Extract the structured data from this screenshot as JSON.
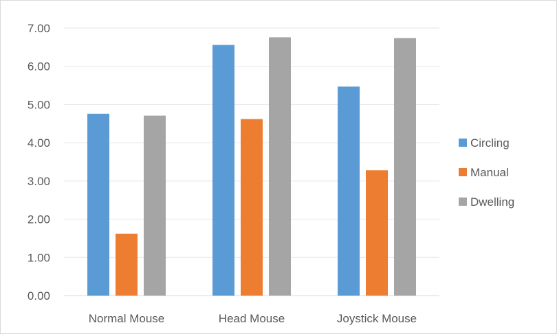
{
  "chart_data": {
    "type": "bar",
    "categories": [
      "Normal Mouse",
      "Head Mouse",
      "Joystick Mouse"
    ],
    "series": [
      {
        "name": "Circling",
        "values": [
          4.76,
          6.56,
          5.47
        ],
        "color": "#5b9bd5"
      },
      {
        "name": "Manual",
        "values": [
          1.62,
          4.62,
          3.28
        ],
        "color": "#ed7d31"
      },
      {
        "name": "Dwelling",
        "values": [
          4.71,
          6.76,
          6.74
        ],
        "color": "#a5a5a5"
      }
    ],
    "ylim": [
      0,
      7
    ],
    "y_ticks": [
      "0.00",
      "1.00",
      "2.00",
      "3.00",
      "4.00",
      "5.00",
      "6.00",
      "7.00"
    ],
    "grid": true,
    "legend_position": "right",
    "title": "",
    "xlabel": "",
    "ylabel": ""
  }
}
